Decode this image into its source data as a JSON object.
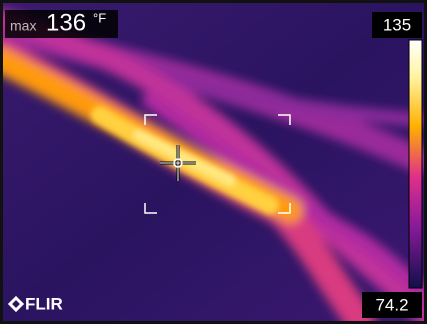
{
  "readout": {
    "label": "max",
    "value": 136,
    "unit": "°F"
  },
  "scale": {
    "max": 135,
    "min": 74.2
  },
  "logo": "FLIR"
}
